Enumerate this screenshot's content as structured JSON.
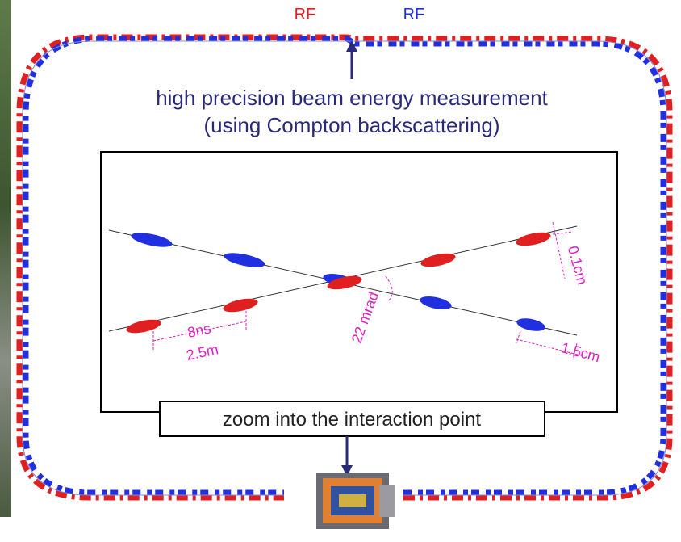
{
  "rf_left": "RF",
  "rf_right": "RF",
  "measurement": {
    "line1": "high precision beam energy measurement",
    "line2": "(using Compton backscattering)"
  },
  "inset": {
    "bunch_time": "8ns",
    "bunch_distance": "2.5m",
    "crossing_angle": "22 mrad",
    "beam_height": "0.1cm",
    "bunch_length": "1.5cm"
  },
  "zoom_label": "zoom into the interaction point"
}
